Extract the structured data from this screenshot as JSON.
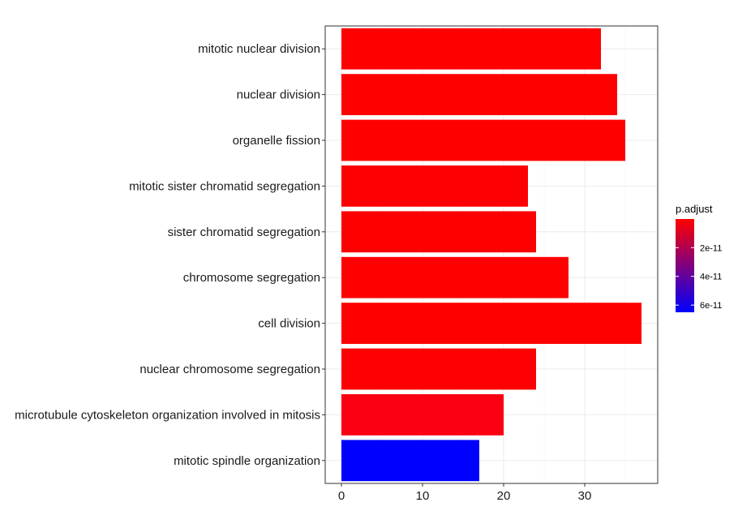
{
  "chart_data": {
    "type": "bar",
    "orientation": "horizontal",
    "categories": [
      "mitotic nuclear division",
      "nuclear division",
      "organelle fission",
      "mitotic sister chromatid segregation",
      "sister chromatid segregation",
      "chromosome segregation",
      "cell division",
      "nuclear chromosome segregation",
      "microtubule cytoskeleton organization involved in mitosis",
      "mitotic spindle organization"
    ],
    "values": [
      32,
      34,
      35,
      23,
      24,
      28,
      37,
      24,
      20,
      17
    ],
    "bar_colors": [
      "#ff0000",
      "#ff0000",
      "#ff0000",
      "#fc0003",
      "#fd0002",
      "#ff0000",
      "#ff0000",
      "#fc0004",
      "#fb0012",
      "#0000ff"
    ],
    "xlim": [
      -2,
      39
    ],
    "x_ticks": [
      0,
      10,
      20,
      30
    ],
    "x_tick_labels": [
      "0",
      "10",
      "20",
      "30"
    ],
    "grid": true,
    "legend": {
      "title": "p.adjust",
      "position": "right",
      "gradient": {
        "low_color": "#ff0000",
        "high_color": "#0000ff"
      },
      "range": [
        1e-13,
        6.5e-11
      ],
      "ticks": [
        {
          "value": 2e-11,
          "label": "2e-11"
        },
        {
          "value": 4e-11,
          "label": "4e-11"
        },
        {
          "value": 6e-11,
          "label": "6e-11"
        }
      ]
    }
  }
}
